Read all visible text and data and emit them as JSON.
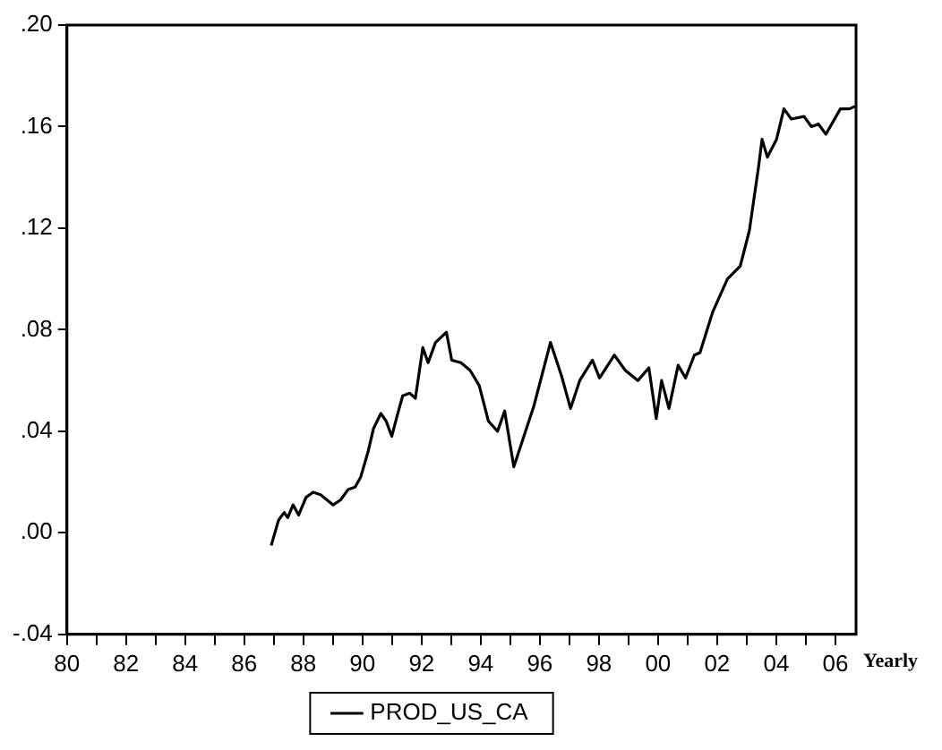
{
  "chart_data": {
    "type": "line",
    "xlabel": "Yearly",
    "legend": "bottom",
    "grid": false,
    "marker": "none",
    "line_style": "solid",
    "xlim": [
      1980,
      2006.7
    ],
    "xticks": [
      {
        "value": 1980,
        "label": "80"
      },
      {
        "value": 1981,
        "label": null
      },
      {
        "value": 1982,
        "label": "82"
      },
      {
        "value": 1983,
        "label": null
      },
      {
        "value": 1984,
        "label": "84"
      },
      {
        "value": 1985,
        "label": null
      },
      {
        "value": 1986,
        "label": "86"
      },
      {
        "value": 1987,
        "label": null
      },
      {
        "value": 1988,
        "label": "88"
      },
      {
        "value": 1989,
        "label": null
      },
      {
        "value": 1990,
        "label": "90"
      },
      {
        "value": 1991,
        "label": null
      },
      {
        "value": 1992,
        "label": "92"
      },
      {
        "value": 1993,
        "label": null
      },
      {
        "value": 1994,
        "label": "94"
      },
      {
        "value": 1995,
        "label": null
      },
      {
        "value": 1996,
        "label": "96"
      },
      {
        "value": 1997,
        "label": null
      },
      {
        "value": 1998,
        "label": "98"
      },
      {
        "value": 1999,
        "label": null
      },
      {
        "value": 2000,
        "label": "00"
      },
      {
        "value": 2001,
        "label": null
      },
      {
        "value": 2002,
        "label": "02"
      },
      {
        "value": 2003,
        "label": null
      },
      {
        "value": 2004,
        "label": "04"
      },
      {
        "value": 2005,
        "label": null
      },
      {
        "value": 2006,
        "label": "06"
      }
    ],
    "ylim": [
      -0.04,
      0.2
    ],
    "yticks": [
      {
        "value": -0.04,
        "label": "-.04"
      },
      {
        "value": 0,
        "label": ".00"
      },
      {
        "value": 0.04,
        "label": ".04"
      },
      {
        "value": 0.08,
        "label": ".08"
      },
      {
        "value": 0.12,
        "label": ".12"
      },
      {
        "value": 0.16,
        "label": ".16"
      },
      {
        "value": 0.2,
        "label": ".20"
      }
    ],
    "x": [
      1986.91,
      1987.16,
      1987.35,
      1987.47,
      1987.65,
      1987.84,
      1988.09,
      1988.33,
      1988.58,
      1989.01,
      1989.26,
      1989.51,
      1989.75,
      1989.94,
      1990.19,
      1990.37,
      1990.62,
      1990.8,
      1990.99,
      1991.17,
      1991.36,
      1991.6,
      1991.79,
      1992.04,
      1992.22,
      1992.47,
      1992.84,
      1993.02,
      1993.33,
      1993.64,
      1993.95,
      1994.26,
      1994.57,
      1994.81,
      1995.12,
      1995.8,
      1996.36,
      1996.73,
      1997.04,
      1997.35,
      1997.78,
      1998.02,
      1998.52,
      1998.89,
      1999.32,
      1999.69,
      1999.94,
      2000.12,
      2000.37,
      2000.68,
      2000.93,
      2001.23,
      2001.42,
      2001.85,
      2002.35,
      2002.78,
      2003.09,
      2003.4,
      2003.52,
      2003.7,
      2004.01,
      2004.26,
      2004.51,
      2004.94,
      2005.19,
      2005.43,
      2005.68,
      2006.17,
      2006.48,
      2006.67
    ],
    "series": [
      {
        "name": "PROD_US_CA",
        "color": "#000000",
        "values": [
          -0.005,
          0.005,
          0.008,
          0.006,
          0.011,
          0.007,
          0.014,
          0.016,
          0.015,
          0.011,
          0.013,
          0.017,
          0.018,
          0.022,
          0.032,
          0.041,
          0.047,
          0.044,
          0.038,
          0.046,
          0.054,
          0.055,
          0.053,
          0.073,
          0.067,
          0.075,
          0.079,
          0.068,
          0.067,
          0.064,
          0.058,
          0.044,
          0.04,
          0.048,
          0.026,
          0.05,
          0.075,
          0.062,
          0.049,
          0.06,
          0.068,
          0.061,
          0.07,
          0.064,
          0.06,
          0.065,
          0.045,
          0.06,
          0.049,
          0.066,
          0.061,
          0.07,
          0.071,
          0.087,
          0.1,
          0.105,
          0.119,
          0.144,
          0.155,
          0.148,
          0.155,
          0.167,
          0.163,
          0.164,
          0.16,
          0.161,
          0.157,
          0.167,
          0.167,
          0.168
        ]
      }
    ]
  }
}
